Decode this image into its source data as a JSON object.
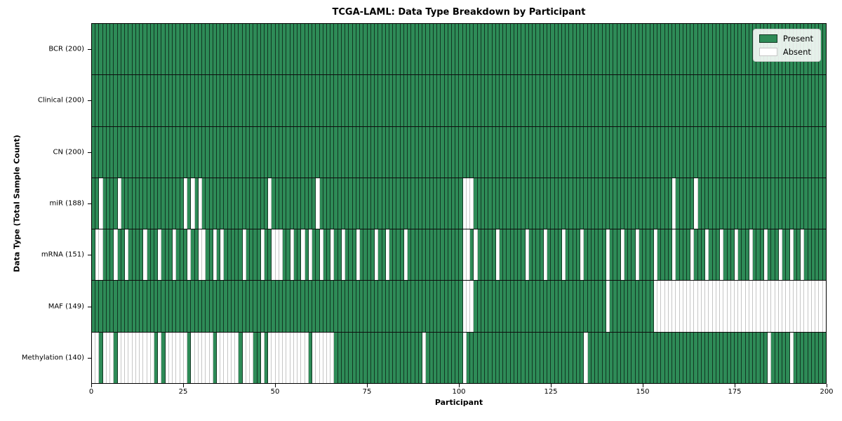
{
  "title": "TCGA-LAML: Data Type Breakdown by Participant",
  "xlabel": "Participant",
  "ylabel": "Data Type (Total Sample Count)",
  "legend": {
    "present_label": "Present",
    "absent_label": "Absent"
  },
  "colors": {
    "present": "#2e8b57",
    "absent": "#ffffff",
    "bar_edge_dark": "#26342c",
    "bar_edge_light": "#c6c6c6"
  },
  "n_participants": 200,
  "x_ticks": [
    0,
    25,
    50,
    75,
    100,
    125,
    150,
    175,
    200
  ],
  "chart_data": {
    "type": "heatmap",
    "title": "TCGA-LAML: Data Type Breakdown by Participant",
    "xlabel": "Participant",
    "ylabel": "Data Type (Total Sample Count)",
    "x_range": [
      0,
      200
    ],
    "legend_entries": [
      "Present",
      "Absent"
    ],
    "legend_position": "upper right",
    "grid": false,
    "rows": [
      {
        "name": "BCR",
        "label": "BCR (200)",
        "total": 200,
        "absent_participants": []
      },
      {
        "name": "Clinical",
        "label": "Clinical (200)",
        "total": 200,
        "absent_participants": []
      },
      {
        "name": "CN",
        "label": "CN (200)",
        "total": 200,
        "absent_participants": []
      },
      {
        "name": "miR",
        "label": "miR (188)",
        "total": 188,
        "absent_participants": [
          2,
          7,
          25,
          27,
          29,
          48,
          61,
          101,
          102,
          103,
          158,
          164
        ]
      },
      {
        "name": "mRNA",
        "label": "mRNA (151)",
        "total": 151,
        "absent_participants": [
          1,
          2,
          6,
          9,
          14,
          18,
          22,
          26,
          29,
          30,
          33,
          35,
          41,
          46,
          49,
          50,
          51,
          54,
          57,
          59,
          62,
          65,
          68,
          72,
          77,
          80,
          85,
          101,
          102,
          104,
          110,
          118,
          123,
          128,
          133,
          140,
          144,
          148,
          153,
          158,
          163,
          167,
          171,
          175,
          179,
          183,
          187,
          190,
          193
        ]
      },
      {
        "name": "MAF",
        "label": "MAF (149)",
        "total": 149,
        "absent_participants": [
          101,
          102,
          103,
          140,
          153,
          154,
          155,
          156,
          157,
          158,
          159,
          160,
          161,
          162,
          163,
          164,
          165,
          166,
          167,
          168,
          169,
          170,
          171,
          172,
          173,
          174,
          175,
          176,
          177,
          178,
          179,
          180,
          181,
          182,
          183,
          184,
          185,
          186,
          187,
          188,
          189,
          190,
          191,
          192,
          193,
          194,
          195,
          196,
          197,
          198,
          199
        ]
      },
      {
        "name": "Methylation",
        "label": "Methylation (140)",
        "total": 140,
        "absent_participants": [
          0,
          1,
          3,
          4,
          5,
          7,
          8,
          9,
          10,
          11,
          12,
          13,
          14,
          15,
          16,
          18,
          20,
          21,
          22,
          23,
          24,
          25,
          27,
          28,
          29,
          30,
          31,
          32,
          34,
          35,
          36,
          37,
          38,
          39,
          41,
          42,
          43,
          46,
          48,
          49,
          50,
          51,
          52,
          53,
          54,
          55,
          56,
          57,
          58,
          60,
          61,
          62,
          63,
          64,
          65,
          90,
          101,
          134,
          184,
          190
        ]
      }
    ]
  }
}
